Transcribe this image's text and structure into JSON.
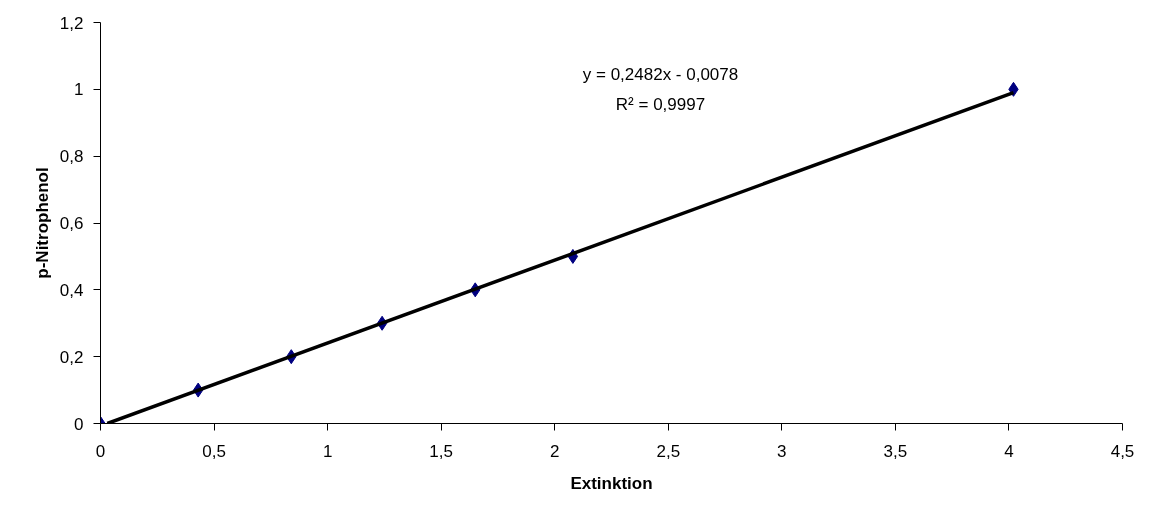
{
  "chart_data": {
    "type": "scatter",
    "xlabel": "Extinktion",
    "ylabel": "p-Nitrophenol",
    "x": [
      0,
      0.43,
      0.84,
      1.24,
      1.65,
      2.08,
      4.02
    ],
    "series": [
      {
        "color": "#000080",
        "marker": "diamond",
        "values": [
          0,
          0.1,
          0.2,
          0.3,
          0.4,
          0.5,
          1
        ]
      },
      {
        "type": "line",
        "color": "#000000",
        "line_style": "solid",
        "x": [
          0.03,
          4.02
        ],
        "values": [
          0,
          0.99
        ]
      }
    ],
    "xlim": [
      0,
      4.5
    ],
    "ylim": [
      0,
      1.2
    ],
    "xticks": [
      0,
      {
        "value": 0.5,
        "label": "0,5"
      },
      1,
      {
        "value": 1.5,
        "label": "1,5"
      },
      2,
      {
        "value": 2.5,
        "label": "2,5"
      },
      3,
      {
        "value": 3.5,
        "label": "3,5"
      },
      4,
      {
        "value": 4.5,
        "label": "4,5"
      }
    ],
    "yticks": [
      0,
      {
        "value": 0.2,
        "label": "0,2"
      },
      {
        "value": 0.4,
        "label": "0,4"
      },
      {
        "value": 0.6,
        "label": "0,6"
      },
      {
        "value": 0.8,
        "label": "0,8"
      },
      1,
      {
        "value": 1.2,
        "label": "1,2"
      }
    ],
    "annotations": [
      "y = 0,2482x - 0,0078",
      "R² = 0,9997"
    ],
    "grid": false
  }
}
